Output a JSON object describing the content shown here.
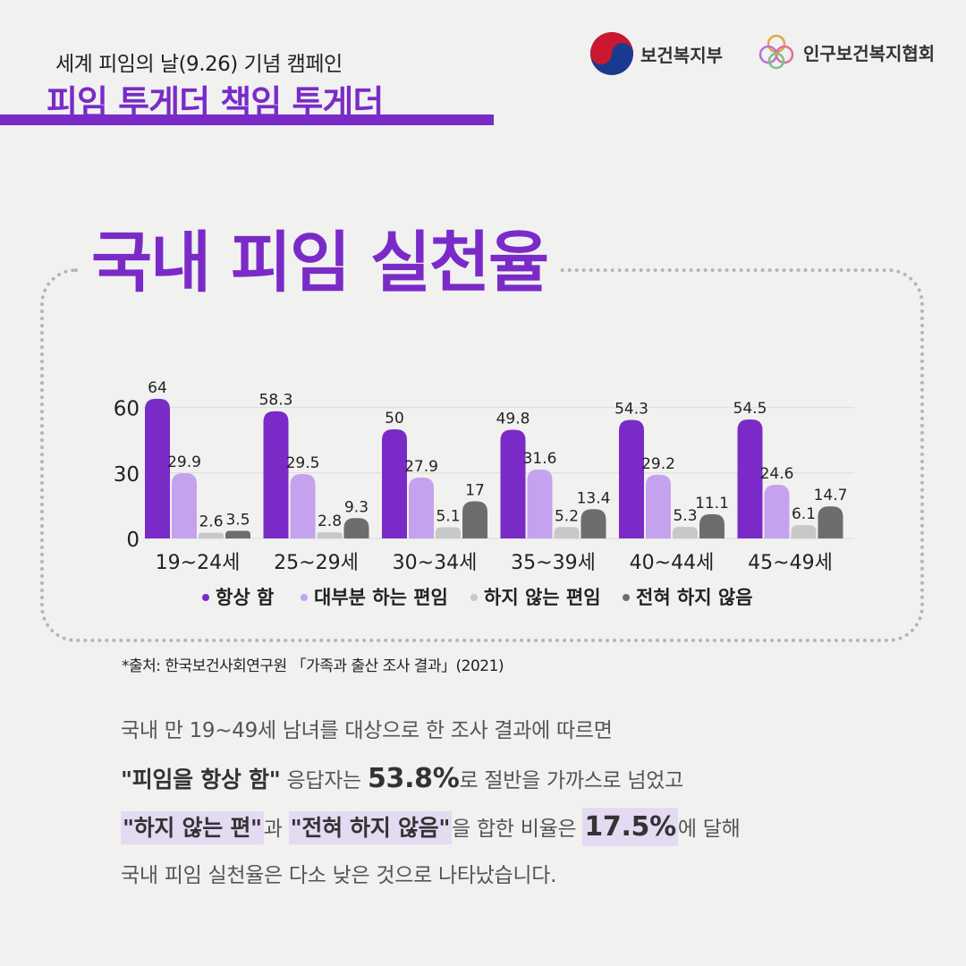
{
  "header": {
    "subtitle": "세계 피임의 날(9.26) 기념 캠페인",
    "campaign": "피임 투게더 책임 투게더"
  },
  "logos": {
    "mohw": {
      "label": "보건복지부",
      "icon": "taegeuk-icon"
    },
    "kpph": {
      "label": "인구보건복지협회",
      "icon": "rings-icon"
    }
  },
  "main_title": "국내 피임 실천율",
  "colors": {
    "accent": "#7a2bc7",
    "highlight": "#e4daf2",
    "background": "#f1f1f0"
  },
  "chart_data": {
    "type": "bar",
    "title": "",
    "xlabel": "",
    "ylabel": "",
    "ylim": [
      0,
      65
    ],
    "yticks": [
      0,
      30,
      60
    ],
    "grid": true,
    "legend": "bottom",
    "categories": [
      "19~24세",
      "25~29세",
      "30~34세",
      "35~39세",
      "40~44세",
      "45~49세"
    ],
    "series": [
      {
        "name": "항상 함",
        "color": "#7a2bc7",
        "values": [
          64,
          58.3,
          50,
          49.8,
          54.3,
          54.5
        ]
      },
      {
        "name": "대부분 하는 편임",
        "color": "#c5a2ee",
        "values": [
          29.9,
          29.5,
          27.9,
          31.6,
          29.2,
          24.6
        ]
      },
      {
        "name": "하지 않는 편임",
        "color": "#c8c8c8",
        "values": [
          2.6,
          2.8,
          5.1,
          5.2,
          5.3,
          6.1
        ]
      },
      {
        "name": "전혀 하지 않음",
        "color": "#6d6d6d",
        "values": [
          3.5,
          9.3,
          17,
          13.4,
          11.1,
          14.7
        ]
      }
    ]
  },
  "source": "*출처: 한국보건사회연구원 「가족과 출산 조사 결과」(2021)",
  "body": {
    "line1": "국내 만 19~49세 남녀를 대상으로 한 조사 결과에 따르면",
    "line2_q": "\"피임을 항상 함\"",
    "line2_a": " 응답자는 ",
    "line2_v": "53.8%",
    "line2_b": "로 절반을 가까스로 넘었고",
    "line3_q1": "\"하지 않는 편\"",
    "line3_a": "과 ",
    "line3_q2": "\"전혀 하지 않음\"",
    "line3_b": "을 합한 비율은 ",
    "line3_v": "17.5%",
    "line3_c": "에 달해",
    "line4": "국내 피임 실천율은 다소 낮은 것으로 나타났습니다."
  }
}
